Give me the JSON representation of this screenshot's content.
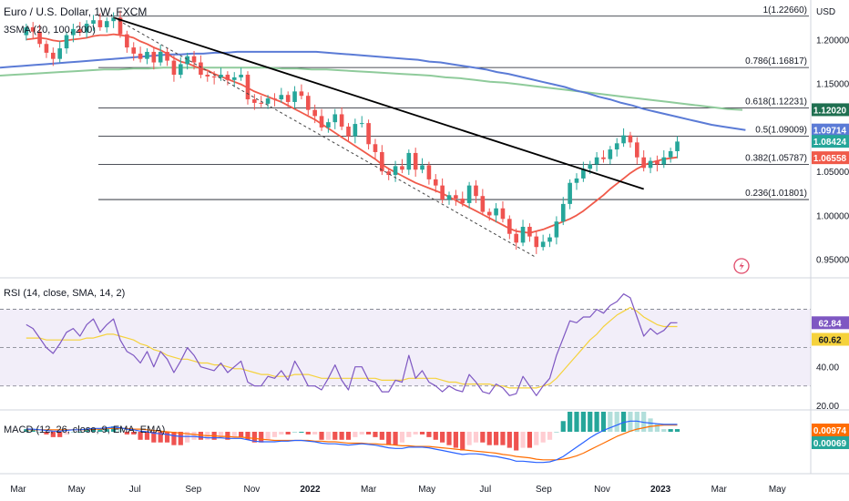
{
  "header": {
    "title": "Euro / U.S. Dollar, 1W, FXCM",
    "indicator": "3SMA (20, 100, 200)",
    "currency": "USD"
  },
  "rsi_label": "RSI (14, close, SMA, 14, 2)",
  "macd_label": "MACD (12, 26, close, 9, EMA, EMA)",
  "colors": {
    "up": "#26a69a",
    "down": "#ef5350",
    "sma20": "#f05a4a",
    "sma100": "#5b7bd6",
    "sma200": "#8fcb9b",
    "rsi": "#7e57c2",
    "rsi_ma": "#f5d23c",
    "macd": "#2962ff",
    "signal": "#ff6d00",
    "trendline": "#000000"
  },
  "chart_data": [
    {
      "type": "candlestick",
      "title": "Euro / U.S. Dollar, 1W, FXCM",
      "x_ticks": [
        "Mar",
        "May",
        "Jul",
        "Sep",
        "Nov",
        "2022",
        "Mar",
        "May",
        "Jul",
        "Sep",
        "Nov",
        "2023",
        "Mar",
        "May"
      ],
      "y_ticks": [
        "1.20000",
        "1.15000",
        "1.10000",
        "1.05000",
        "1.00000",
        "0.95000"
      ],
      "y_range": [
        0.93,
        1.245
      ],
      "fib_levels": [
        {
          "label": "1(1.22660)",
          "value": 1.2266
        },
        {
          "label": "0.786(1.16817)",
          "value": 1.16817
        },
        {
          "label": "0.618(1.12231)",
          "value": 1.12231
        },
        {
          "label": "0.5(1.09009)",
          "value": 1.09009
        },
        {
          "label": "0.382(1.05787)",
          "value": 1.05787
        },
        {
          "label": "0.236(1.01801)",
          "value": 1.01801
        }
      ],
      "price_badges": [
        {
          "label": "1.12020",
          "value": 1.1202,
          "color": "#1f6f50"
        },
        {
          "label": "1.09714",
          "value": 1.09714,
          "color": "#5b7bd6"
        },
        {
          "label": "1.08424",
          "value": 1.08424,
          "color": "#26a69a"
        },
        {
          "label": "1.06558",
          "value": 1.06558,
          "color": "#f05a4a"
        }
      ],
      "closes": [
        1.214,
        1.209,
        1.195,
        1.185,
        1.178,
        1.19,
        1.205,
        1.212,
        1.208,
        1.218,
        1.222,
        1.214,
        1.221,
        1.225,
        1.206,
        1.191,
        1.184,
        1.178,
        1.186,
        1.174,
        1.186,
        1.176,
        1.16,
        1.172,
        1.181,
        1.174,
        1.16,
        1.158,
        1.157,
        1.16,
        1.154,
        1.157,
        1.16,
        1.132,
        1.128,
        1.127,
        1.133,
        1.132,
        1.137,
        1.129,
        1.141,
        1.136,
        1.12,
        1.113,
        1.1,
        1.106,
        1.115,
        1.101,
        1.09,
        1.104,
        1.105,
        1.081,
        1.072,
        1.05,
        1.046,
        1.056,
        1.052,
        1.071,
        1.052,
        1.057,
        1.041,
        1.034,
        1.018,
        1.023,
        1.019,
        1.014,
        1.034,
        1.022,
        1.004,
        1.0,
        1.008,
        0.996,
        0.979,
        0.969,
        0.987,
        0.976,
        0.964,
        0.97,
        0.975,
        0.993,
        1.013,
        1.037,
        1.042,
        1.053,
        1.058,
        1.066,
        1.064,
        1.075,
        1.082,
        1.091,
        1.083,
        1.066,
        1.054,
        1.062,
        1.058,
        1.066,
        1.073,
        1.084
      ],
      "sma20": [
        1.2,
        1.201,
        1.202,
        1.201,
        1.199,
        1.198,
        1.199,
        1.2,
        1.201,
        1.202,
        1.204,
        1.205,
        1.205,
        1.206,
        1.205,
        1.204,
        1.202,
        1.198,
        1.195,
        1.191,
        1.188,
        1.184,
        1.179,
        1.175,
        1.173,
        1.17,
        1.167,
        1.165,
        1.161,
        1.158,
        1.155,
        1.152,
        1.149,
        1.145,
        1.141,
        1.138,
        1.135,
        1.132,
        1.129,
        1.125,
        1.121,
        1.117,
        1.113,
        1.109,
        1.104,
        1.099,
        1.094,
        1.089,
        1.084,
        1.079,
        1.074,
        1.069,
        1.064,
        1.058,
        1.053,
        1.049,
        1.045,
        1.041,
        1.037,
        1.034,
        1.031,
        1.028,
        1.025,
        1.021,
        1.017,
        1.013,
        1.009,
        1.005,
        1.001,
        0.997,
        0.993,
        0.989,
        0.985,
        0.982,
        0.981,
        0.98,
        0.982,
        0.984,
        0.987,
        0.99,
        0.993,
        0.996,
        1.0,
        1.005,
        1.011,
        1.017,
        1.023,
        1.03,
        1.036,
        1.042,
        1.048,
        1.053,
        1.057,
        1.06,
        1.062,
        1.064,
        1.065,
        1.066
      ],
      "sma100": [
        1.168,
        1.169,
        1.17,
        1.171,
        1.172,
        1.173,
        1.174,
        1.175,
        1.176,
        1.177,
        1.178,
        1.179,
        1.18,
        1.181,
        1.182,
        1.183,
        1.183,
        1.184,
        1.184,
        1.185,
        1.185,
        1.186,
        1.186,
        1.186,
        1.186,
        1.186,
        1.186,
        1.186,
        1.186,
        1.185,
        1.184,
        1.183,
        1.182,
        1.181,
        1.18,
        1.179,
        1.178,
        1.177,
        1.175,
        1.174,
        1.172,
        1.17,
        1.168,
        1.166,
        1.163,
        1.161,
        1.158,
        1.155,
        1.152,
        1.149,
        1.146,
        1.142,
        1.139,
        1.135,
        1.132,
        1.128,
        1.125,
        1.121,
        1.118,
        1.115,
        1.112,
        1.109,
        1.106,
        1.103,
        1.101,
        1.099,
        1.097
      ],
      "sma200": [
        1.159,
        1.16,
        1.161,
        1.162,
        1.163,
        1.164,
        1.165,
        1.166,
        1.166,
        1.167,
        1.167,
        1.168,
        1.168,
        1.168,
        1.168,
        1.168,
        1.168,
        1.168,
        1.168,
        1.167,
        1.167,
        1.166,
        1.166,
        1.165,
        1.164,
        1.163,
        1.162,
        1.161,
        1.16,
        1.159,
        1.157,
        1.156,
        1.154,
        1.152,
        1.151,
        1.149,
        1.147,
        1.145,
        1.143,
        1.141,
        1.139,
        1.137,
        1.135,
        1.133,
        1.131,
        1.129,
        1.127,
        1.125,
        1.123,
        1.121,
        1.12
      ]
    },
    {
      "type": "line",
      "title": "RSI (14, close, SMA, 14, 2)",
      "y_ticks": [
        "40.00",
        "20.00"
      ],
      "y_range": [
        18,
        85
      ],
      "bands": [
        70,
        50,
        30
      ],
      "rsi": [
        62,
        60,
        55,
        50,
        47,
        52,
        58,
        60,
        56,
        62,
        65,
        58,
        62,
        65,
        54,
        48,
        46,
        42,
        48,
        40,
        48,
        44,
        37,
        43,
        50,
        46,
        40,
        39,
        38,
        42,
        37,
        40,
        43,
        32,
        30,
        30,
        35,
        34,
        38,
        33,
        43,
        37,
        30,
        30,
        28,
        34,
        41,
        33,
        28,
        40,
        40,
        33,
        32,
        27,
        27,
        33,
        32,
        46,
        34,
        38,
        32,
        30,
        27,
        30,
        28,
        27,
        36,
        32,
        27,
        26,
        31,
        29,
        25,
        26,
        35,
        30,
        25,
        30,
        34,
        46,
        55,
        64,
        63,
        66,
        66,
        70,
        68,
        72,
        74,
        78,
        76,
        66,
        56,
        60,
        57,
        59,
        63,
        63
      ],
      "rsi_ma": [
        55,
        55,
        55,
        54,
        54,
        54,
        54,
        54,
        54,
        55,
        55,
        56,
        57,
        57,
        56,
        55,
        54,
        52,
        51,
        49,
        48,
        46,
        45,
        44,
        44,
        43,
        42,
        42,
        41,
        41,
        40,
        39,
        39,
        38,
        37,
        36,
        36,
        35,
        35,
        35,
        36,
        36,
        36,
        35,
        34,
        34,
        34,
        34,
        34,
        34,
        34,
        34,
        34,
        33,
        33,
        33,
        33,
        34,
        34,
        34,
        34,
        34,
        33,
        32,
        32,
        31,
        31,
        31,
        31,
        31,
        30,
        30,
        29,
        29,
        29,
        29,
        29,
        30,
        31,
        34,
        38,
        42,
        46,
        50,
        54,
        57,
        61,
        64,
        67,
        69,
        71,
        69,
        66,
        64,
        62,
        61,
        61,
        61
      ],
      "badges": [
        {
          "label": "62.84",
          "color": "#7e57c2"
        },
        {
          "label": "60.62",
          "color": "#f5d23c"
        }
      ]
    },
    {
      "type": "bar",
      "title": "MACD (12, 26, close, 9, EMA, EMA)",
      "y_range": [
        -0.06,
        0.03
      ],
      "macd": [
        0.004,
        0.004,
        0.003,
        0.002,
        0.001,
        0.001,
        0.002,
        0.003,
        0.003,
        0.004,
        0.005,
        0.005,
        0.006,
        0.007,
        0.006,
        0.004,
        0.003,
        0.001,
        0.0,
        -0.002,
        -0.003,
        -0.004,
        -0.006,
        -0.007,
        -0.007,
        -0.007,
        -0.008,
        -0.009,
        -0.009,
        -0.009,
        -0.01,
        -0.01,
        -0.01,
        -0.012,
        -0.014,
        -0.015,
        -0.015,
        -0.015,
        -0.014,
        -0.014,
        -0.013,
        -0.013,
        -0.014,
        -0.015,
        -0.017,
        -0.018,
        -0.018,
        -0.019,
        -0.02,
        -0.019,
        -0.018,
        -0.019,
        -0.02,
        -0.022,
        -0.024,
        -0.025,
        -0.025,
        -0.023,
        -0.023,
        -0.023,
        -0.024,
        -0.026,
        -0.028,
        -0.03,
        -0.032,
        -0.034,
        -0.033,
        -0.033,
        -0.034,
        -0.036,
        -0.037,
        -0.039,
        -0.041,
        -0.044,
        -0.044,
        -0.045,
        -0.046,
        -0.046,
        -0.045,
        -0.042,
        -0.037,
        -0.03,
        -0.023,
        -0.016,
        -0.009,
        -0.003,
        0.002,
        0.006,
        0.01,
        0.014,
        0.016,
        0.016,
        0.014,
        0.013,
        0.012,
        0.011,
        0.011,
        0.011
      ],
      "signal": [
        0.003,
        0.003,
        0.003,
        0.003,
        0.003,
        0.003,
        0.003,
        0.003,
        0.003,
        0.003,
        0.004,
        0.004,
        0.005,
        0.005,
        0.005,
        0.005,
        0.004,
        0.004,
        0.003,
        0.002,
        0.001,
        0.0,
        -0.001,
        -0.002,
        -0.003,
        -0.004,
        -0.005,
        -0.006,
        -0.006,
        -0.007,
        -0.007,
        -0.008,
        -0.008,
        -0.009,
        -0.01,
        -0.011,
        -0.012,
        -0.013,
        -0.013,
        -0.013,
        -0.013,
        -0.013,
        -0.013,
        -0.014,
        -0.014,
        -0.015,
        -0.015,
        -0.016,
        -0.017,
        -0.017,
        -0.017,
        -0.018,
        -0.018,
        -0.019,
        -0.019,
        -0.02,
        -0.021,
        -0.021,
        -0.022,
        -0.022,
        -0.022,
        -0.023,
        -0.024,
        -0.025,
        -0.026,
        -0.027,
        -0.028,
        -0.029,
        -0.03,
        -0.031,
        -0.032,
        -0.034,
        -0.035,
        -0.037,
        -0.038,
        -0.039,
        -0.041,
        -0.042,
        -0.042,
        -0.042,
        -0.041,
        -0.039,
        -0.036,
        -0.032,
        -0.027,
        -0.022,
        -0.017,
        -0.012,
        -0.007,
        -0.003,
        0.001,
        0.004,
        0.006,
        0.008,
        0.009,
        0.01,
        0.01,
        0.01
      ],
      "badges": [
        {
          "label": "0.00974",
          "color": "#ff6d00"
        },
        {
          "label": "0.00069",
          "color": "#26a69a"
        }
      ]
    }
  ]
}
